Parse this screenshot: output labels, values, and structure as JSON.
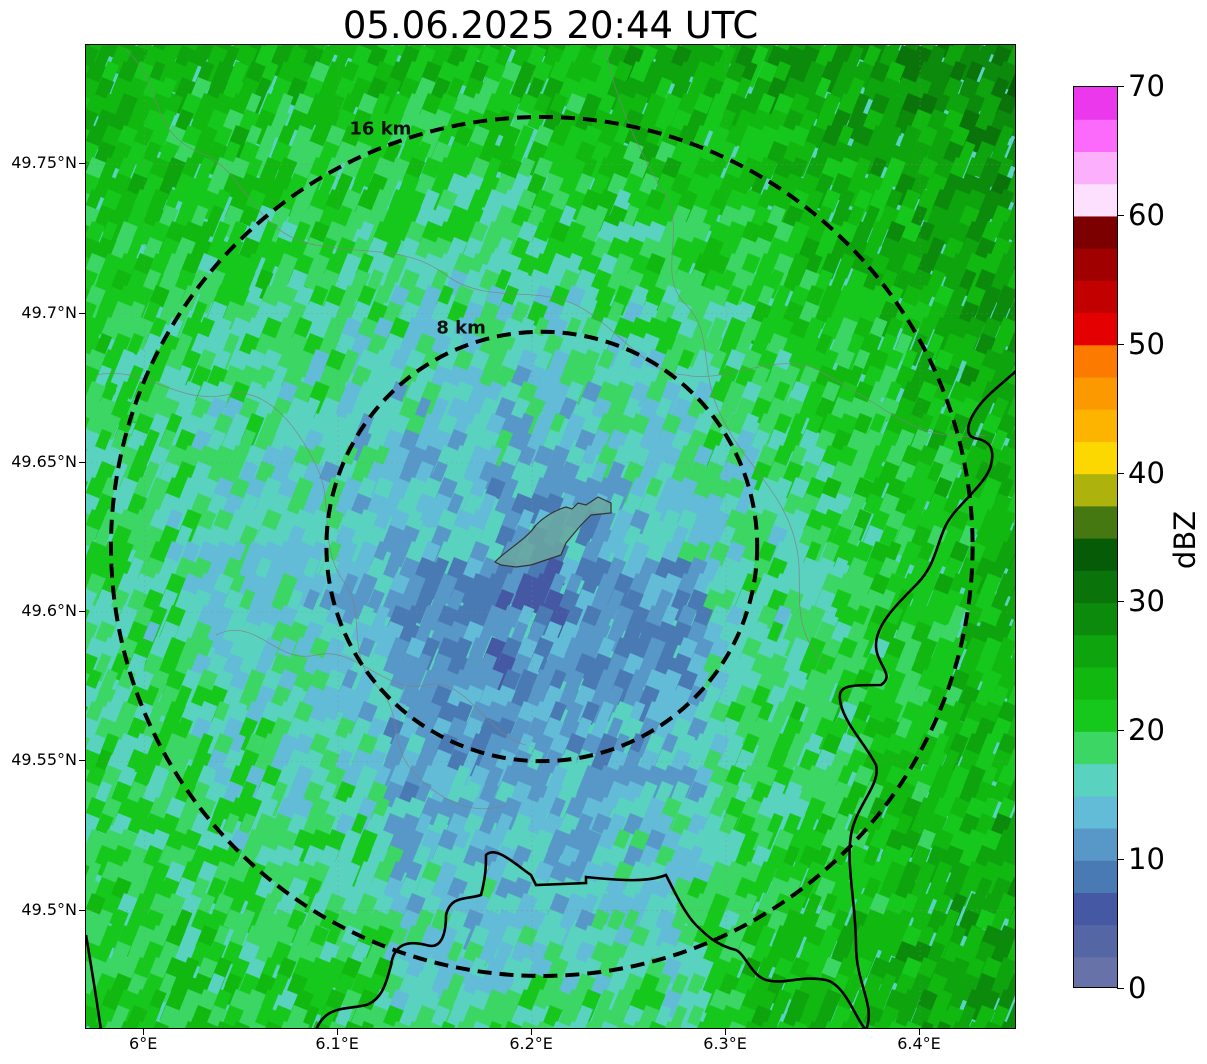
{
  "title": "05.06.2025 20:44 UTC",
  "map": {
    "lon_range": [
      5.97,
      6.45
    ],
    "lat_range": [
      49.46,
      49.79
    ],
    "center": {
      "lon": 6.205,
      "lat": 49.622
    },
    "rings": [
      {
        "radius_km": 8,
        "label": "8 km",
        "style": "dashed",
        "color": "#000000"
      },
      {
        "radius_km": 16,
        "label": "16 km",
        "style": "dashed",
        "color": "#000000"
      }
    ],
    "gridlines": true,
    "basemap_layers": [
      "radar-reflectivity",
      "country-borders",
      "admin-boundaries",
      "urban-area"
    ],
    "dominant_reflectivity_dbz": "5-25"
  },
  "axes": {
    "lat_ticks": [
      {
        "value": 49.75,
        "label": "49.75°N"
      },
      {
        "value": 49.7,
        "label": "49.7°N"
      },
      {
        "value": 49.65,
        "label": "49.65°N"
      },
      {
        "value": 49.6,
        "label": "49.6°N"
      },
      {
        "value": 49.55,
        "label": "49.55°N"
      },
      {
        "value": 49.5,
        "label": "49.5°N"
      }
    ],
    "lon_ticks": [
      {
        "value": 6.0,
        "label": "6°E"
      },
      {
        "value": 6.1,
        "label": "6.1°E"
      },
      {
        "value": 6.2,
        "label": "6.2°E"
      },
      {
        "value": 6.3,
        "label": "6.3°E"
      },
      {
        "value": 6.4,
        "label": "6.4°E"
      }
    ]
  },
  "colorbar": {
    "label": "dBZ",
    "min": 0,
    "max": 70,
    "tick_labels": [
      {
        "value": 0,
        "label": "0"
      },
      {
        "value": 10,
        "label": "10"
      },
      {
        "value": 20,
        "label": "20"
      },
      {
        "value": 30,
        "label": "30"
      },
      {
        "value": 40,
        "label": "40"
      },
      {
        "value": 50,
        "label": "50"
      },
      {
        "value": 60,
        "label": "60"
      },
      {
        "value": 70,
        "label": "70"
      }
    ],
    "colors": [
      "#6672a8",
      "#5566a4",
      "#4458a4",
      "#4a7ab4",
      "#5898c8",
      "#62bcd8",
      "#5ad2c0",
      "#3cd664",
      "#16c81c",
      "#10b810",
      "#0ea40e",
      "#0c8a0c",
      "#0a740a",
      "#065c06",
      "#467812",
      "#aeb20c",
      "#fcd800",
      "#fcb400",
      "#fc9800",
      "#fc7a00",
      "#e40000",
      "#c20000",
      "#a00000",
      "#7c0000",
      "#fde0fd",
      "#fcb0fc",
      "#fc6afc",
      "#ec38ec"
    ]
  }
}
